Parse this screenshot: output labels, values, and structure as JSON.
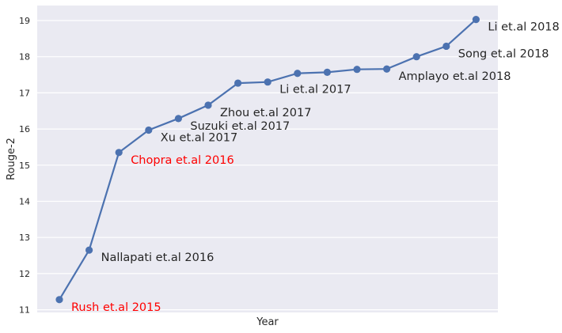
{
  "chart_data": {
    "type": "line",
    "title": "",
    "xlabel": "Year",
    "ylabel": "Rouge-2",
    "ylim": [
      10.9,
      19.4
    ],
    "y_ticks": [
      "11",
      "12",
      "13",
      "14",
      "15",
      "16",
      "17",
      "18",
      "19"
    ],
    "grid": true,
    "line_color": "#4c72b0",
    "background_color": "#eaeaf2",
    "highlight_color": "#ff0000",
    "default_text_color": "#262626",
    "values": [
      11.28,
      12.65,
      15.35,
      15.97,
      16.29,
      16.66,
      17.27,
      17.3,
      17.54,
      17.57,
      17.65,
      17.66,
      18.0,
      18.29,
      19.03
    ],
    "annotations": [
      {
        "text": "Rush et.al 2015",
        "point": 0,
        "highlight": true
      },
      {
        "text": "Nallapati et.al 2016",
        "point": 1,
        "highlight": false
      },
      {
        "text": "Chopra et.al 2016",
        "point": 2,
        "highlight": true
      },
      {
        "text": "Xu et.al 2017",
        "point": 3,
        "highlight": false
      },
      {
        "text": "Suzuki et.al 2017",
        "point": 4,
        "highlight": false
      },
      {
        "text": "Zhou et.al 2017",
        "point": 5,
        "highlight": false
      },
      {
        "text": "Li et.al 2017",
        "point": 7,
        "highlight": false
      },
      {
        "text": "Amplayo et.al 2018",
        "point": 11,
        "highlight": false
      },
      {
        "text": "Song et.al 2018",
        "point": 13,
        "highlight": false
      },
      {
        "text": "Li et.al 2018",
        "point": 14,
        "highlight": false
      }
    ]
  }
}
